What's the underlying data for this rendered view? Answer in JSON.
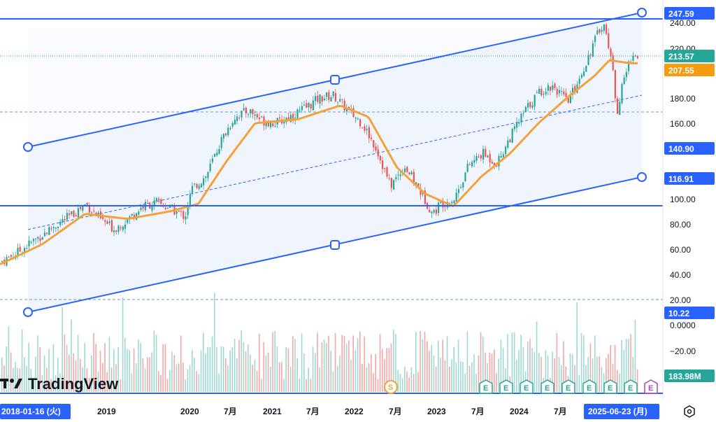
{
  "brand": {
    "name": "TradingView"
  },
  "chart_data": {
    "type": "candlestick",
    "price_axis": {
      "ticks": [
        "240.00",
        "220.00",
        "180.00",
        "160.00",
        "100.00",
        "80.00",
        "60.00",
        "40.00",
        "20.00"
      ],
      "volume_ticks": [
        "0.0000",
        "−20.00"
      ]
    },
    "time_axis": {
      "ticks": [
        "2019",
        "2020",
        "7月",
        "2021",
        "7月",
        "2022",
        "7月",
        "2023",
        "7月",
        "2024",
        "7月"
      ],
      "range_start_label": "2018-01-16 (火)",
      "range_end_label": "2025-06-23 (月)"
    },
    "price_labels": {
      "channel_top": "247.59",
      "last_price": "213.57",
      "ma_value": "207.55",
      "channel_left": "140.90",
      "channel_right": "116.91",
      "horizontal_low": "10.22",
      "volume": "183.98M"
    },
    "markers": {
      "dividend": "S",
      "earnings": "E"
    },
    "ma_color": "#f3a23b",
    "up_color": "#26a69a",
    "down_color": "#ef5350",
    "line_color": "#2962ff",
    "ylim": [
      0,
      260
    ],
    "x_range": [
      "2018-01",
      "2025-07"
    ],
    "price_series": [
      {
        "date": "2018-01",
        "close": 50
      },
      {
        "date": "2018-03",
        "close": 56
      },
      {
        "date": "2018-05",
        "close": 64
      },
      {
        "date": "2018-07",
        "close": 72
      },
      {
        "date": "2018-09",
        "close": 80
      },
      {
        "date": "2018-11",
        "close": 87
      },
      {
        "date": "2019-01",
        "close": 96
      },
      {
        "date": "2019-03",
        "close": 84
      },
      {
        "date": "2019-05",
        "close": 76
      },
      {
        "date": "2019-07",
        "close": 84
      },
      {
        "date": "2019-09",
        "close": 94
      },
      {
        "date": "2019-11",
        "close": 97
      },
      {
        "date": "2020-01",
        "close": 92
      },
      {
        "date": "2020-03",
        "close": 86
      },
      {
        "date": "2020-04",
        "close": 108
      },
      {
        "date": "2020-06",
        "close": 118
      },
      {
        "date": "2020-08",
        "close": 145
      },
      {
        "date": "2020-10",
        "close": 165
      },
      {
        "date": "2020-12",
        "close": 170
      },
      {
        "date": "2021-02",
        "close": 162
      },
      {
        "date": "2021-04",
        "close": 160
      },
      {
        "date": "2021-06",
        "close": 166
      },
      {
        "date": "2021-08",
        "close": 172
      },
      {
        "date": "2021-10",
        "close": 180
      },
      {
        "date": "2021-12",
        "close": 182
      },
      {
        "date": "2022-02",
        "close": 170
      },
      {
        "date": "2022-04",
        "close": 160
      },
      {
        "date": "2022-06",
        "close": 140
      },
      {
        "date": "2022-08",
        "close": 110
      },
      {
        "date": "2022-10",
        "close": 126
      },
      {
        "date": "2022-12",
        "close": 108
      },
      {
        "date": "2023-02",
        "close": 88
      },
      {
        "date": "2023-03",
        "close": 96
      },
      {
        "date": "2023-05",
        "close": 100
      },
      {
        "date": "2023-07",
        "close": 126
      },
      {
        "date": "2023-09",
        "close": 136
      },
      {
        "date": "2023-11",
        "close": 128
      },
      {
        "date": "2024-01",
        "close": 150
      },
      {
        "date": "2024-03",
        "close": 170
      },
      {
        "date": "2024-05",
        "close": 185
      },
      {
        "date": "2024-07",
        "close": 190
      },
      {
        "date": "2024-09",
        "close": 176
      },
      {
        "date": "2024-11",
        "close": 200
      },
      {
        "date": "2025-01",
        "close": 228
      },
      {
        "date": "2025-02",
        "close": 240
      },
      {
        "date": "2025-03",
        "close": 218
      },
      {
        "date": "2025-04",
        "close": 170
      },
      {
        "date": "2025-05",
        "close": 196
      },
      {
        "date": "2025-06",
        "close": 213.57
      }
    ],
    "ma_series": [
      {
        "date": "2018-01",
        "value": 48
      },
      {
        "date": "2018-07",
        "value": 64
      },
      {
        "date": "2019-01",
        "value": 88
      },
      {
        "date": "2019-07",
        "value": 84
      },
      {
        "date": "2020-01",
        "value": 90
      },
      {
        "date": "2020-05",
        "value": 96
      },
      {
        "date": "2020-09",
        "value": 130
      },
      {
        "date": "2021-01",
        "value": 160
      },
      {
        "date": "2021-07",
        "value": 163
      },
      {
        "date": "2022-01",
        "value": 174
      },
      {
        "date": "2022-05",
        "value": 165
      },
      {
        "date": "2022-09",
        "value": 125
      },
      {
        "date": "2023-01",
        "value": 104
      },
      {
        "date": "2023-05",
        "value": 94
      },
      {
        "date": "2023-09",
        "value": 118
      },
      {
        "date": "2024-01",
        "value": 136
      },
      {
        "date": "2024-05",
        "value": 160
      },
      {
        "date": "2024-09",
        "value": 180
      },
      {
        "date": "2025-01",
        "value": 198
      },
      {
        "date": "2025-03",
        "value": 210
      },
      {
        "date": "2025-06",
        "value": 207.55
      }
    ]
  }
}
